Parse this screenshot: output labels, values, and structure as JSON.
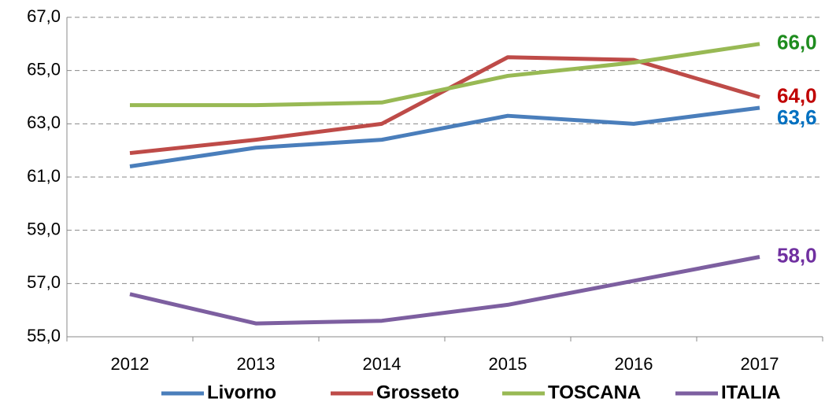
{
  "chart_data": {
    "type": "line",
    "categories": [
      "2012",
      "2013",
      "2014",
      "2015",
      "2016",
      "2017"
    ],
    "series": [
      {
        "name": "Livorno",
        "color": "#4a7ebb",
        "label_color": "#0070c0",
        "values": [
          61.4,
          62.1,
          62.4,
          63.3,
          63.0,
          63.6
        ],
        "value_labels": [
          null,
          null,
          null,
          null,
          null,
          "63,6"
        ]
      },
      {
        "name": "Grosseto",
        "color": "#be4b48",
        "label_color": "#c00000",
        "values": [
          61.9,
          62.4,
          63.0,
          65.5,
          65.4,
          64.0
        ],
        "value_labels": [
          null,
          null,
          null,
          null,
          null,
          "64,0"
        ]
      },
      {
        "name": "TOSCANA",
        "color": "#98b954",
        "label_color": "#1e8c1e",
        "values": [
          63.7,
          63.7,
          63.8,
          64.8,
          65.3,
          66.0
        ],
        "value_labels": [
          null,
          null,
          null,
          null,
          null,
          "66,0"
        ]
      },
      {
        "name": "ITALIA",
        "color": "#7d5fa0",
        "label_color": "#7030a0",
        "values": [
          56.6,
          55.5,
          55.6,
          56.2,
          57.1,
          58.0
        ],
        "value_labels": [
          null,
          null,
          null,
          null,
          null,
          "58,0"
        ]
      }
    ],
    "ylim": [
      55,
      67
    ],
    "yticks": [
      {
        "value": 55,
        "label": "55,0"
      },
      {
        "value": 57,
        "label": "57,0"
      },
      {
        "value": 59,
        "label": "59,0"
      },
      {
        "value": 61,
        "label": "61,0"
      },
      {
        "value": 63,
        "label": "63,0"
      },
      {
        "value": 65,
        "label": "65,0"
      },
      {
        "value": 67,
        "label": "67,0"
      }
    ],
    "grid": true,
    "legend": "bottom"
  }
}
